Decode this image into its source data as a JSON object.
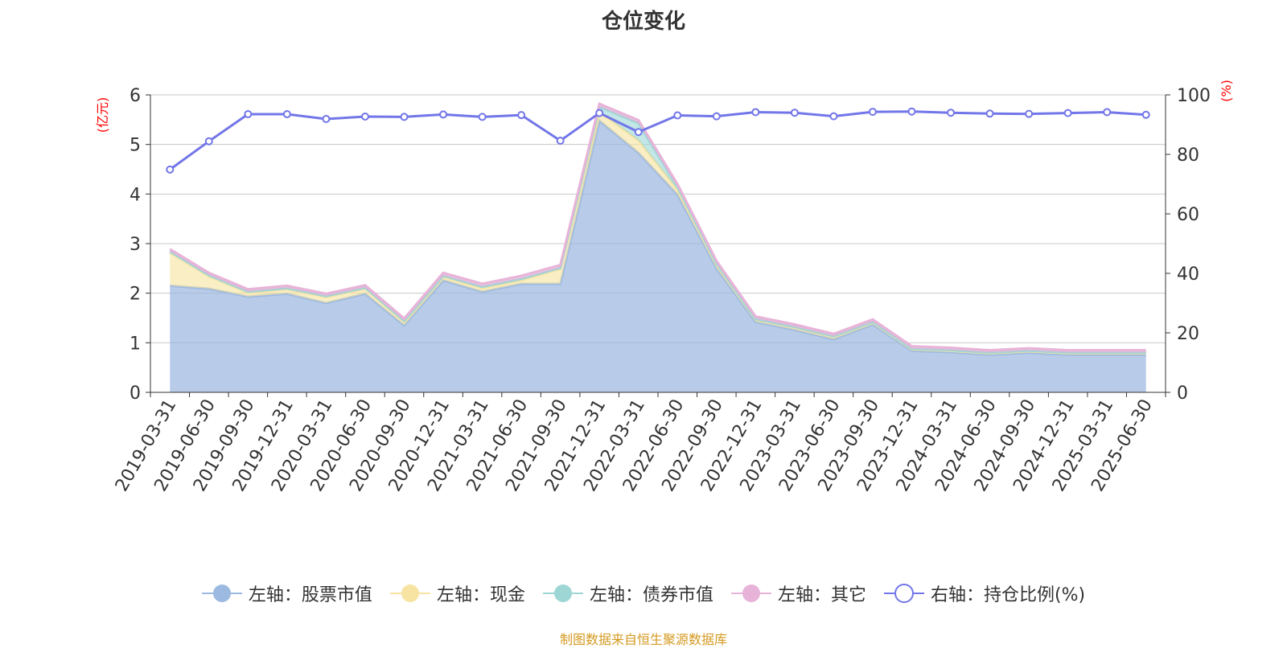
{
  "title": "仓位变化",
  "source": "制图数据来自恒生聚源数据库",
  "colors": {
    "stock": "#9cb9e1",
    "cash": "#f7e4a2",
    "bond": "#9ed6d6",
    "other": "#e8b3d8",
    "ratio": "#7276e8",
    "axis_unit": "#ff0000",
    "grid": "#c8c8c8"
  },
  "chart_data": {
    "type": "area",
    "title": "仓位变化",
    "left_axis_label": "(亿元)",
    "right_axis_label": "(%)",
    "left_ylim": [
      0,
      6
    ],
    "left_ticks": [
      "0",
      "1",
      "2",
      "3",
      "4",
      "5",
      "6"
    ],
    "right_ylim": [
      0,
      100
    ],
    "right_ticks": [
      "0",
      "20",
      "40",
      "60",
      "80",
      "100"
    ],
    "grid": true,
    "legend_position": "bottom",
    "categories": [
      "2019-03-31",
      "2019-06-30",
      "2019-09-30",
      "2019-12-31",
      "2020-03-31",
      "2020-06-30",
      "2020-09-30",
      "2020-12-31",
      "2021-03-31",
      "2021-06-30",
      "2021-09-30",
      "2021-12-31",
      "2022-03-31",
      "2022-06-30",
      "2022-09-30",
      "2022-12-31",
      "2023-03-31",
      "2023-06-30",
      "2023-09-30",
      "2023-12-31",
      "2024-03-31",
      "2024-06-30",
      "2024-09-30",
      "2024-12-31",
      "2025-03-31",
      "2025-06-30"
    ],
    "series": [
      {
        "name": "左轴：股票市值",
        "axis": "left",
        "stacked": true,
        "color": "#9cb9e1",
        "values": [
          2.15,
          2.09,
          1.93,
          1.99,
          1.8,
          1.99,
          1.35,
          2.26,
          2.03,
          2.19,
          2.19,
          5.48,
          4.83,
          3.99,
          2.5,
          1.42,
          1.26,
          1.07,
          1.37,
          0.84,
          0.81,
          0.76,
          0.8,
          0.76,
          0.76,
          0.76
        ]
      },
      {
        "name": "左轴：现金",
        "axis": "left",
        "stacked": true,
        "color": "#f7e4a2",
        "values": [
          0.67,
          0.25,
          0.08,
          0.09,
          0.12,
          0.1,
          0.07,
          0.07,
          0.07,
          0.07,
          0.3,
          0.18,
          0.25,
          0.1,
          0.08,
          0.05,
          0.05,
          0.05,
          0.04,
          0.03,
          0.03,
          0.03,
          0.03,
          0.03,
          0.03,
          0.03
        ]
      },
      {
        "name": "左轴：债券市值",
        "axis": "left",
        "stacked": true,
        "color": "#9ed6d6",
        "values": [
          0.02,
          0.02,
          0.02,
          0.02,
          0.02,
          0.02,
          0.02,
          0.02,
          0.03,
          0.03,
          0.02,
          0.1,
          0.35,
          0.05,
          0.02,
          0.01,
          0.01,
          0.01,
          0.01,
          0.01,
          0.01,
          0.01,
          0.01,
          0.01,
          0.01,
          0.01
        ]
      },
      {
        "name": "左轴：其它",
        "axis": "left",
        "stacked": true,
        "color": "#e8b3d8",
        "values": [
          0.05,
          0.05,
          0.05,
          0.05,
          0.05,
          0.05,
          0.05,
          0.06,
          0.06,
          0.06,
          0.06,
          0.06,
          0.06,
          0.06,
          0.05,
          0.05,
          0.05,
          0.05,
          0.05,
          0.05,
          0.05,
          0.05,
          0.05,
          0.05,
          0.05,
          0.05
        ]
      },
      {
        "name": "右轴：持仓比例(%)",
        "axis": "right",
        "type": "line",
        "color": "#7276e8",
        "values": [
          74.9,
          84.4,
          93.5,
          93.5,
          91.9,
          92.7,
          92.6,
          93.4,
          92.6,
          93.2,
          84.6,
          93.9,
          87.5,
          93.1,
          92.8,
          94.2,
          94.0,
          92.8,
          94.3,
          94.4,
          94.0,
          93.7,
          93.6,
          93.9,
          94.2,
          93.3
        ]
      }
    ]
  }
}
